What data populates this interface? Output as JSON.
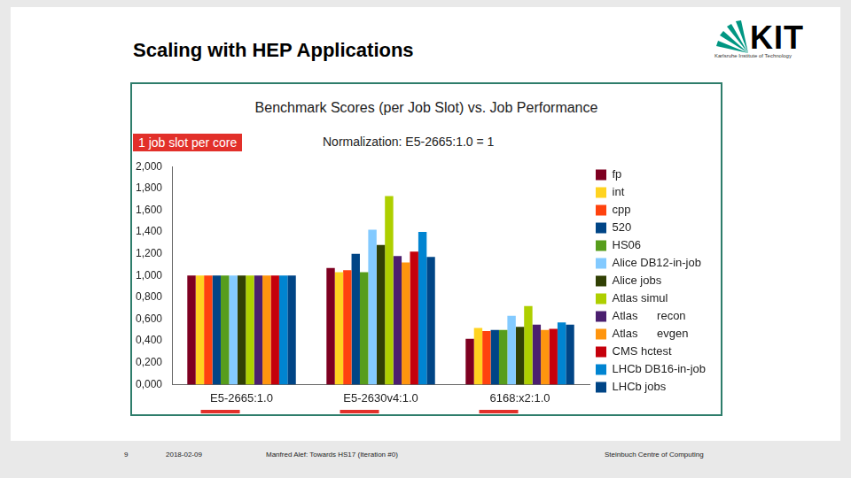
{
  "slide": {
    "title": "Scaling with HEP Applications",
    "logo": "KIT",
    "logo_subtitle": "Karlsruhe Institute of Technology",
    "page_number": "9",
    "date": "2018-02-09",
    "author": "Manfred Alef:  Towards HS17 (Iteration #0)",
    "department": "Steinbuch Centre of Computing"
  },
  "chart_data": {
    "type": "bar",
    "title": "Benchmark Scores (per Job Slot)  vs.  Job Performance",
    "annotations": [
      "1 job slot per core",
      "Normalization:  E5-2665:1.0 = 1"
    ],
    "categories": [
      "E5-2665:1.0",
      "E5-2630v4:1.0",
      "6168:x2:1.0"
    ],
    "series": [
      {
        "name": "fp",
        "color": "#7e0021",
        "values": [
          1.0,
          1.07,
          0.42
        ]
      },
      {
        "name": "int",
        "color": "#ffd320",
        "values": [
          1.0,
          1.03,
          0.52
        ]
      },
      {
        "name": "cpp",
        "color": "#ff420e",
        "values": [
          1.0,
          1.05,
          0.49
        ]
      },
      {
        "name": "520",
        "color": "#004586",
        "values": [
          1.0,
          1.2,
          0.5
        ]
      },
      {
        "name": "HS06",
        "color": "#579d1c",
        "values": [
          1.0,
          1.03,
          0.5
        ]
      },
      {
        "name": "Alice DB12-in-job",
        "color": "#83caff",
        "values": [
          1.0,
          1.42,
          0.63
        ]
      },
      {
        "name": "Alice jobs",
        "color": "#314004",
        "values": [
          1.0,
          1.28,
          0.53
        ]
      },
      {
        "name": "Atlas simul",
        "color": "#aecf00",
        "values": [
          1.0,
          1.73,
          0.72
        ]
      },
      {
        "name": "Atlas      recon",
        "color": "#4b1f6f",
        "values": [
          1.0,
          1.18,
          0.55
        ]
      },
      {
        "name": "Atlas      evgen",
        "color": "#ff950e",
        "values": [
          1.0,
          1.12,
          0.5
        ]
      },
      {
        "name": "CMS hctest",
        "color": "#c5000b",
        "values": [
          1.0,
          1.22,
          0.51
        ]
      },
      {
        "name": "LHCb DB16-in-job",
        "color": "#0084d1",
        "values": [
          1.0,
          1.4,
          0.57
        ]
      },
      {
        "name": "LHCb jobs",
        "color": "#004586",
        "values": [
          1.0,
          1.17,
          0.55
        ]
      }
    ],
    "ylim": [
      0,
      2
    ],
    "yticks": [
      {
        "value": 0,
        "label": "0,000"
      },
      {
        "value": 0.2,
        "label": "0,200"
      },
      {
        "value": 0.4,
        "label": "0,400"
      },
      {
        "value": 0.6,
        "label": "0,600"
      },
      {
        "value": 0.8,
        "label": "0,800"
      },
      {
        "value": 1,
        "label": "1,000"
      },
      {
        "value": 1.2,
        "label": "1,200"
      },
      {
        "value": 1.4,
        "label": "1,400"
      },
      {
        "value": 1.6,
        "label": "1,600"
      },
      {
        "value": 1.8,
        "label": "1,800"
      },
      {
        "value": 2,
        "label": "2,000"
      }
    ],
    "grid": false,
    "legend": "right"
  }
}
